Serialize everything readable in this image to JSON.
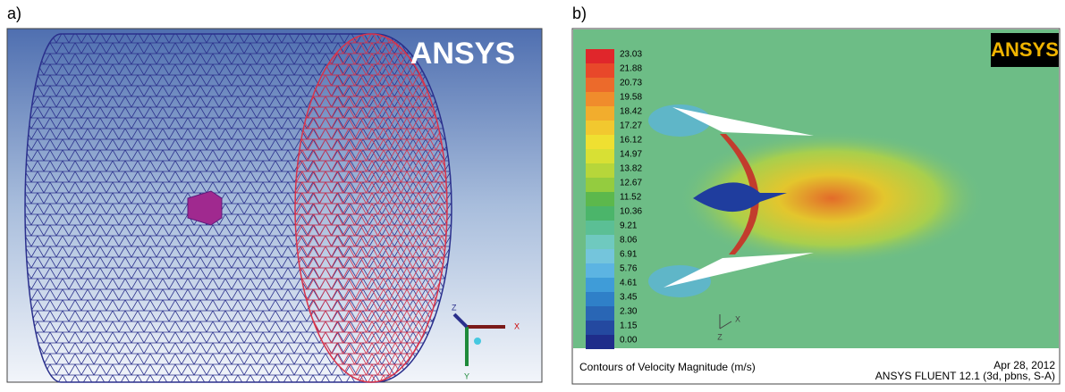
{
  "panel_a": {
    "label": "a)",
    "logo": "ANSYS",
    "axes": {
      "x": "X",
      "y": "Y",
      "z": "Z"
    }
  },
  "panel_b": {
    "label": "b)",
    "logo": "ANSYS",
    "colorbar": [
      "23.03",
      "21.88",
      "20.73",
      "19.58",
      "18.42",
      "17.27",
      "16.12",
      "14.97",
      "13.82",
      "12.67",
      "11.52",
      "10.36",
      "9.21",
      "8.06",
      "6.91",
      "5.76",
      "4.61",
      "3.45",
      "2.30",
      "1.15",
      "0.00"
    ],
    "axes": {
      "x": "X",
      "z": "Z"
    },
    "caption": "Contours of Velocity Magnitude (m/s)",
    "date": "Apr 28, 2012",
    "software": "ANSYS FLUENT 12.1 (3d, pbns, S-A)"
  }
}
